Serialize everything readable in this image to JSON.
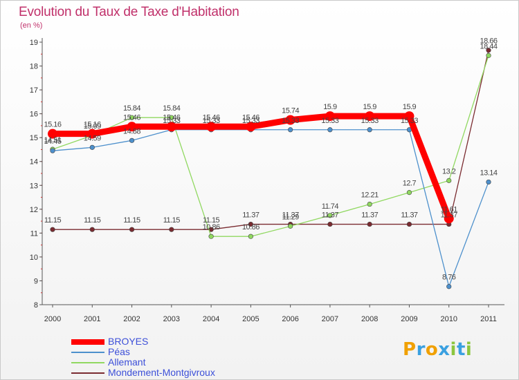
{
  "chart_data": {
    "type": "line",
    "title": "Evolution du Taux de Taxe d'Habitation",
    "subtitle": "(en %)",
    "x": [
      "2000",
      "2001",
      "2002",
      "2003",
      "2004",
      "2005",
      "2006",
      "2007",
      "2008",
      "2009",
      "2010",
      "2011"
    ],
    "ylim": [
      8,
      19
    ],
    "yticks": [
      "8",
      "9",
      "10",
      "11",
      "12",
      "13",
      "14",
      "15",
      "16",
      "17",
      "18",
      "19"
    ],
    "grid": false,
    "legend_position": "bottom-left",
    "series": [
      {
        "name": "BROYES",
        "color": "#ff0000",
        "values": [
          15.16,
          15.16,
          15.46,
          15.46,
          15.46,
          15.46,
          15.74,
          15.9,
          15.9,
          15.9,
          11.61,
          null
        ],
        "labels": [
          "15.16",
          "15.16",
          "15.46",
          "15.46",
          "15.46",
          "15.46",
          "15.74",
          "15.9",
          "15.9",
          "15.9",
          "11.61",
          ""
        ]
      },
      {
        "name": "Péas",
        "color": "#4d90cc",
        "values": [
          14.45,
          14.59,
          14.88,
          15.33,
          15.33,
          15.33,
          15.33,
          15.33,
          15.33,
          15.33,
          8.76,
          13.14
        ],
        "labels": [
          "14.45",
          "14.59",
          "14.88",
          "15.33",
          "15.33",
          "15.33",
          "15.33",
          "15.33",
          "15.33",
          "15.33",
          "8.76",
          "13.14"
        ]
      },
      {
        "name": "Allemant",
        "color": "#90d860",
        "values": [
          14.51,
          15.09,
          15.84,
          15.84,
          10.86,
          10.86,
          11.29,
          11.74,
          12.21,
          12.7,
          13.2,
          18.44
        ],
        "labels": [
          "14.51",
          "15.09",
          "15.84",
          "15.84",
          "10.86",
          "10.86",
          "11.29",
          "11.74",
          "12.21",
          "12.7",
          "13.2",
          "18.44"
        ]
      },
      {
        "name": "Mondement-Montgivroux",
        "color": "#7a2b30",
        "values": [
          11.15,
          11.15,
          11.15,
          11.15,
          11.15,
          11.37,
          11.37,
          11.37,
          11.37,
          11.37,
          11.37,
          18.66
        ],
        "labels": [
          "11.15",
          "11.15",
          "11.15",
          "11.15",
          "11.15",
          "11.37",
          "11.37",
          "11.37",
          "11.37",
          "11.37",
          "11.37",
          "18.66"
        ]
      }
    ]
  },
  "brand": {
    "name": "Proxiti",
    "letters": [
      {
        "char": "P",
        "color": "#f0a000"
      },
      {
        "char": "r",
        "color": "#3aa0e0"
      },
      {
        "char": "o",
        "color": "#f0a000"
      },
      {
        "char": "x",
        "color": "#3aa0e0"
      },
      {
        "char": "i",
        "color": "#8cc63f"
      },
      {
        "char": "t",
        "color": "#3aa0e0"
      },
      {
        "char": "i",
        "color": "#8cc63f"
      }
    ]
  }
}
